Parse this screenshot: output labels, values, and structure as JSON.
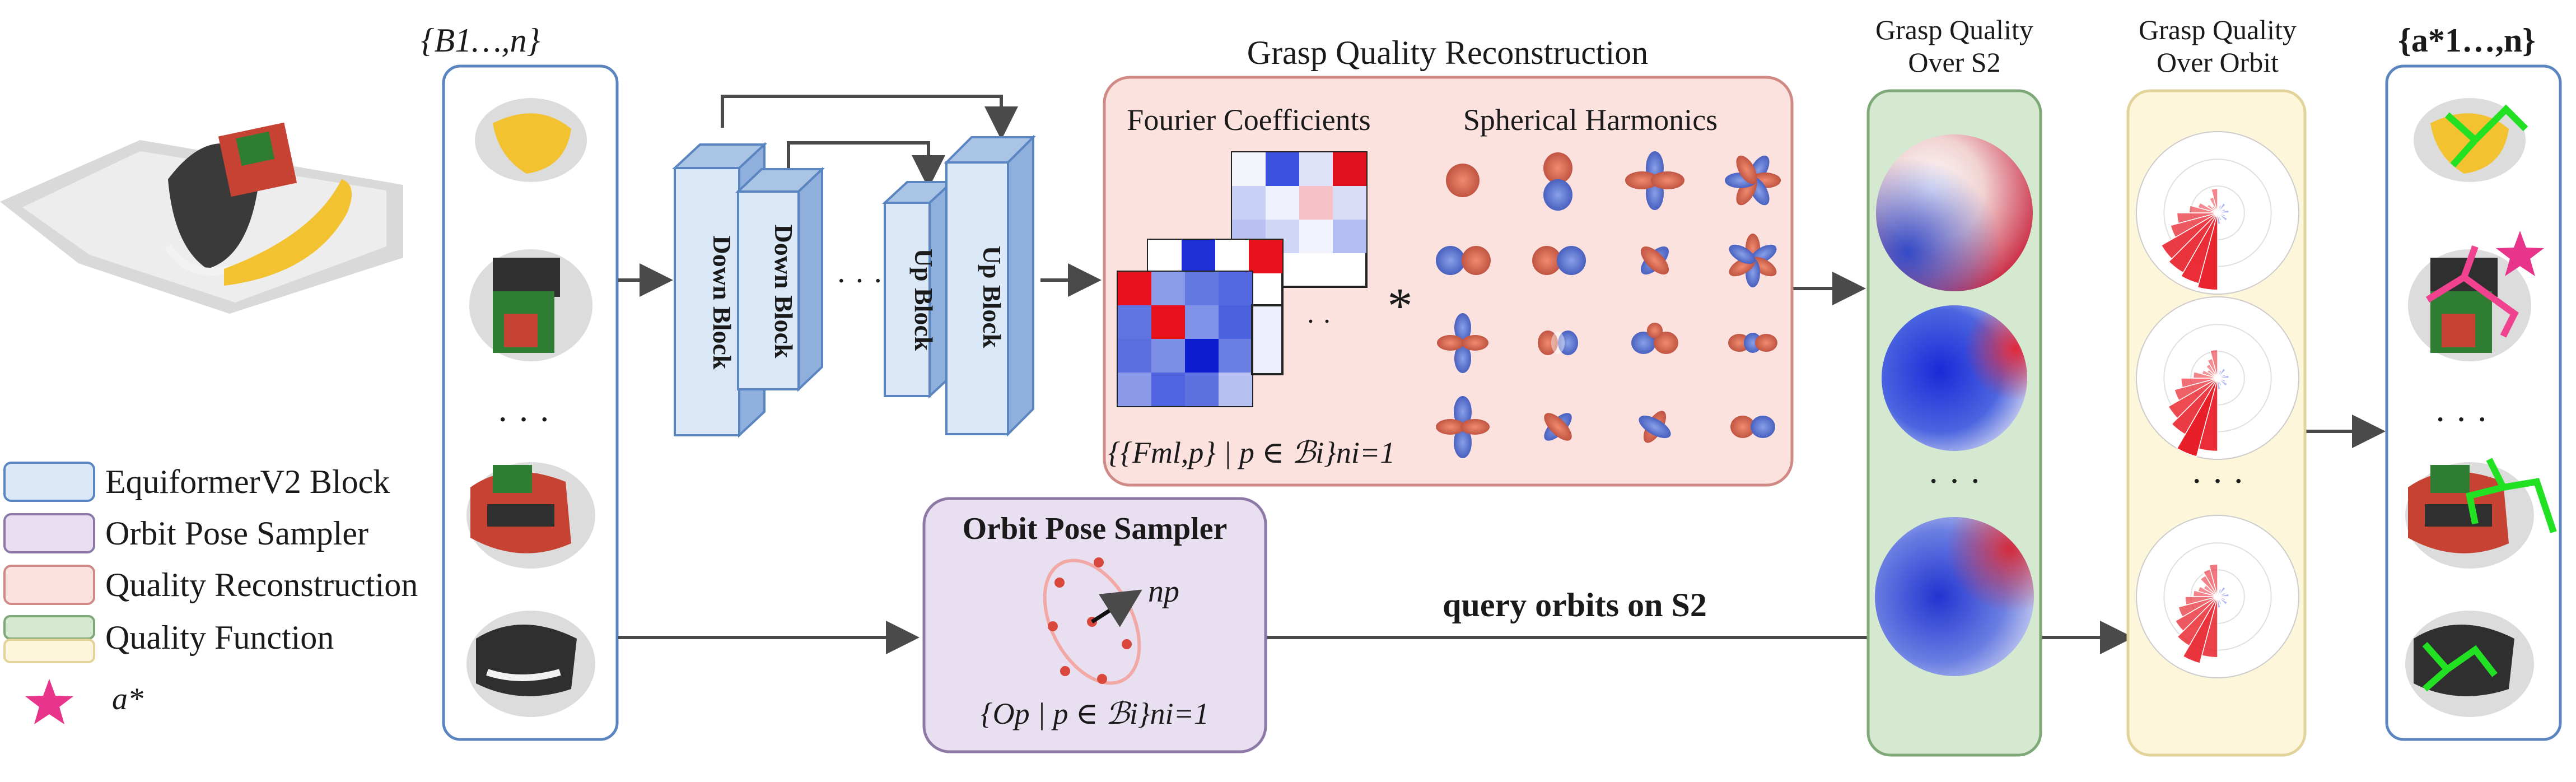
{
  "colors": {
    "equiformer_fill": "#dbe8f8",
    "equiformer_stroke": "#5b85c0",
    "orbit_fill": "#e8dff0",
    "orbit_stroke": "#8d78a6",
    "quality_fill": "#fbe2df",
    "quality_stroke": "#d08a85",
    "function_green_fill": "#d5e8d0",
    "function_green_stroke": "#7ea877",
    "function_yellow_fill": "#fdf6da",
    "function_yellow_stroke": "#e2d39a",
    "star": "#e8348b",
    "grasp_green": "#22e022",
    "grasp_pink": "#f0428f"
  },
  "labels": {
    "batch_set": "{B1…,n}",
    "output_set": "{a*1…,n}",
    "down_block": "Down Block",
    "up_block": "Up Block",
    "unet_ellipsis": "· · ·",
    "quality_reconstruction_title": "Grasp Quality Reconstruction",
    "fourier_coefficients": "Fourier Coefficients",
    "spherical_harmonics": "Spherical Harmonics",
    "convolution_symbol": "*",
    "coeff_ellipsis": "·  ·",
    "coeff_formula": "{{Fml,p} | p ∈ ℬi}ni=1",
    "orbit_sampler_title": "Orbit Pose Sampler",
    "normal_label": "np",
    "orbit_formula": "{Op | p ∈ ℬi}ni=1",
    "query_orbits": "query orbits on S2",
    "sphere_title_line1": "Grasp Quality",
    "sphere_title_line2": "Over S2",
    "orbit_title_line1": "Grasp Quality",
    "orbit_title_line2": "Over Orbit",
    "vertical_ellipsis": "· · ·"
  },
  "legend": {
    "items": [
      {
        "label": "EquiformerV2 Block"
      },
      {
        "label": "Orbit Pose Sampler"
      },
      {
        "label": "Quality Reconstruction"
      },
      {
        "label": "Quality Function"
      },
      {
        "label": "a*"
      }
    ]
  },
  "icons": {
    "star": "star-icon",
    "scene": "point-cloud-scene-icon",
    "object": "point-cloud-object-icon",
    "sphere": "quality-sphere-icon",
    "polar": "polar-rose-icon",
    "harmonic": "spherical-harmonic-icon"
  }
}
